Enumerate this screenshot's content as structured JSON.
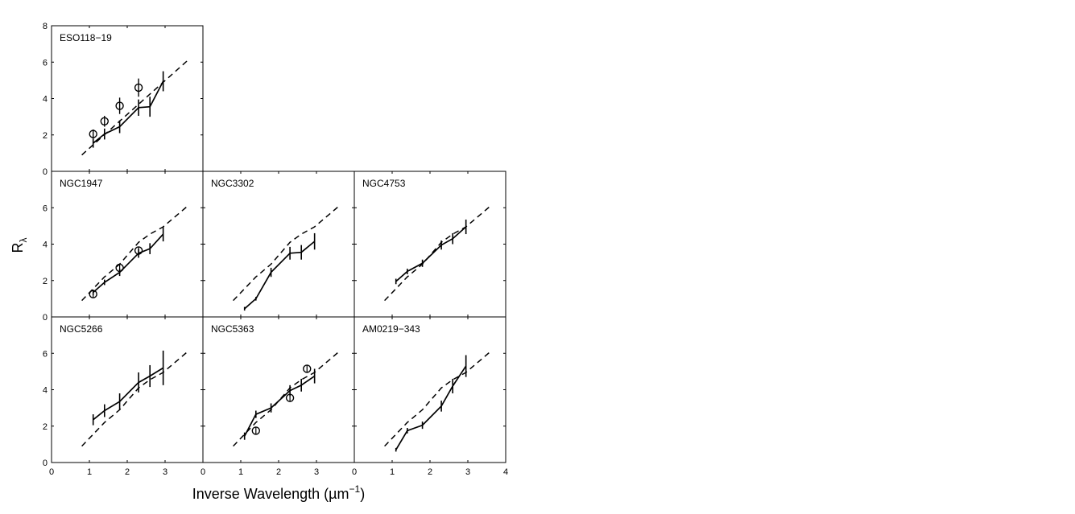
{
  "figure": {
    "xlabel": "Inverse Wavelength  (µm",
    "xlabel_sup": "−1",
    "xlabel_close": ")",
    "ylabel": "R",
    "ylabel_sub": "λ"
  },
  "chart_data": [
    {
      "type": "line",
      "title": "ESO118−19",
      "panel_row": 0,
      "panel_col": 0,
      "xlim": [
        0,
        4
      ],
      "ylim": [
        0,
        8
      ],
      "xticks": [],
      "yticks": [
        0,
        2,
        4,
        6,
        8
      ],
      "series": [
        {
          "style": "dashed",
          "x": [
            0.8,
            3.6
          ],
          "y": [
            0.9,
            6.1
          ]
        },
        {
          "style": "solid-errorbars",
          "x": [
            1.1,
            1.4,
            1.8,
            2.3,
            2.6,
            2.95
          ],
          "y": [
            1.55,
            2.05,
            2.45,
            3.5,
            3.55,
            4.95
          ],
          "err": [
            0.25,
            0.3,
            0.35,
            0.45,
            0.55,
            0.55
          ]
        },
        {
          "style": "circles",
          "x": [
            1.1,
            1.4,
            1.8,
            2.3
          ],
          "y": [
            2.05,
            2.75,
            3.6,
            4.6
          ],
          "err": [
            0.25,
            0.3,
            0.45,
            0.5
          ]
        }
      ]
    },
    {
      "type": "line",
      "title": "NGC1947",
      "panel_row": 1,
      "panel_col": 0,
      "xlim": [
        0,
        4
      ],
      "ylim": [
        0,
        8
      ],
      "xticks": [],
      "yticks": [
        0,
        2,
        4,
        6
      ],
      "series": [
        {
          "style": "dashed",
          "x": [
            0.8,
            1.4,
            1.8,
            2.3,
            2.6,
            2.95,
            3.6
          ],
          "y": [
            0.9,
            2.2,
            2.9,
            4.1,
            4.55,
            4.95,
            6.1
          ]
        },
        {
          "style": "solid-errorbars",
          "x": [
            1.1,
            1.4,
            1.8,
            2.3,
            2.6,
            2.95
          ],
          "y": [
            1.35,
            1.9,
            2.45,
            3.5,
            3.75,
            4.55
          ],
          "err": [
            0.15,
            0.15,
            0.2,
            0.25,
            0.3,
            0.4
          ]
        },
        {
          "style": "circles",
          "x": [
            1.1,
            1.8,
            2.3
          ],
          "y": [
            1.25,
            2.7,
            3.65
          ],
          "err": [
            0.0,
            0.0,
            0.0
          ]
        }
      ]
    },
    {
      "type": "line",
      "title": "NGC3302",
      "panel_row": 1,
      "panel_col": 1,
      "xlim": [
        0,
        4
      ],
      "ylim": [
        0,
        8
      ],
      "xticks": [],
      "yticks": [],
      "series": [
        {
          "style": "dashed",
          "x": [
            0.8,
            1.4,
            1.8,
            2.3,
            2.6,
            2.95,
            3.6
          ],
          "y": [
            0.9,
            2.2,
            2.9,
            4.1,
            4.55,
            4.95,
            6.1
          ]
        },
        {
          "style": "solid-errorbars",
          "x": [
            1.1,
            1.4,
            1.8,
            2.3,
            2.6,
            2.95
          ],
          "y": [
            0.45,
            1.0,
            2.45,
            3.5,
            3.55,
            4.15
          ],
          "err": [
            0.1,
            0.1,
            0.25,
            0.35,
            0.4,
            0.45
          ]
        }
      ]
    },
    {
      "type": "line",
      "title": "NGC4753",
      "panel_row": 1,
      "panel_col": 2,
      "xlim": [
        0,
        4
      ],
      "ylim": [
        0,
        8
      ],
      "xticks": [],
      "yticks": [],
      "series": [
        {
          "style": "dashed",
          "x": [
            0.8,
            1.4,
            1.8,
            2.3,
            2.6,
            2.95,
            3.6
          ],
          "y": [
            0.9,
            2.2,
            2.9,
            4.1,
            4.55,
            4.95,
            6.1
          ]
        },
        {
          "style": "solid-errorbars",
          "x": [
            1.1,
            1.4,
            1.8,
            2.3,
            2.6,
            2.95
          ],
          "y": [
            1.95,
            2.5,
            2.95,
            3.95,
            4.3,
            4.95
          ],
          "err": [
            0.15,
            0.15,
            0.2,
            0.25,
            0.3,
            0.4
          ]
        }
      ]
    },
    {
      "type": "line",
      "title": "NGC5266",
      "panel_row": 2,
      "panel_col": 0,
      "xlim": [
        0,
        4
      ],
      "ylim": [
        0,
        8
      ],
      "xticks": [
        0,
        1,
        2,
        3
      ],
      "yticks": [
        0,
        2,
        4,
        6
      ],
      "series": [
        {
          "style": "dashed",
          "x": [
            0.8,
            1.4,
            1.8,
            2.3,
            2.6,
            2.95,
            3.6
          ],
          "y": [
            0.9,
            2.2,
            2.9,
            4.1,
            4.55,
            4.95,
            6.1
          ]
        },
        {
          "style": "solid-errorbars",
          "x": [
            1.1,
            1.4,
            1.8,
            2.3,
            2.6,
            2.95
          ],
          "y": [
            2.35,
            2.85,
            3.35,
            4.4,
            4.75,
            5.2
          ],
          "err": [
            0.3,
            0.35,
            0.45,
            0.55,
            0.6,
            0.95
          ]
        }
      ]
    },
    {
      "type": "line",
      "title": "NGC5363",
      "panel_row": 2,
      "panel_col": 1,
      "xlim": [
        0,
        4
      ],
      "ylim": [
        0,
        8
      ],
      "xticks": [
        0,
        1,
        2,
        3
      ],
      "yticks": [],
      "series": [
        {
          "style": "dashed",
          "x": [
            0.8,
            1.4,
            1.8,
            2.3,
            2.6,
            2.95,
            3.6
          ],
          "y": [
            0.9,
            2.2,
            2.9,
            4.1,
            4.55,
            4.95,
            6.1
          ]
        },
        {
          "style": "solid-errorbars",
          "x": [
            1.1,
            1.4,
            1.8,
            2.3,
            2.6,
            2.95
          ],
          "y": [
            1.45,
            2.65,
            3.0,
            3.95,
            4.25,
            4.75
          ],
          "err": [
            0.2,
            0.2,
            0.25,
            0.3,
            0.35,
            0.4
          ]
        },
        {
          "style": "circles",
          "x": [
            1.4,
            2.3,
            2.75
          ],
          "y": [
            1.75,
            3.55,
            5.15
          ],
          "err": [
            0.0,
            0.0,
            0.0
          ]
        }
      ]
    },
    {
      "type": "line",
      "title": "AM0219−343",
      "panel_row": 2,
      "panel_col": 2,
      "xlim": [
        0,
        4
      ],
      "ylim": [
        0,
        8
      ],
      "xticks": [
        0,
        1,
        2,
        3,
        4
      ],
      "yticks": [],
      "series": [
        {
          "style": "dashed",
          "x": [
            0.8,
            1.4,
            1.8,
            2.3,
            2.6,
            2.95,
            3.6
          ],
          "y": [
            0.9,
            2.2,
            2.9,
            4.1,
            4.55,
            4.95,
            6.1
          ]
        },
        {
          "style": "solid-errorbars",
          "x": [
            1.1,
            1.4,
            1.8,
            2.3,
            2.6,
            2.95
          ],
          "y": [
            0.7,
            1.75,
            2.05,
            3.1,
            4.2,
            5.3
          ],
          "err": [
            0.1,
            0.15,
            0.2,
            0.3,
            0.4,
            0.6
          ]
        }
      ]
    }
  ]
}
